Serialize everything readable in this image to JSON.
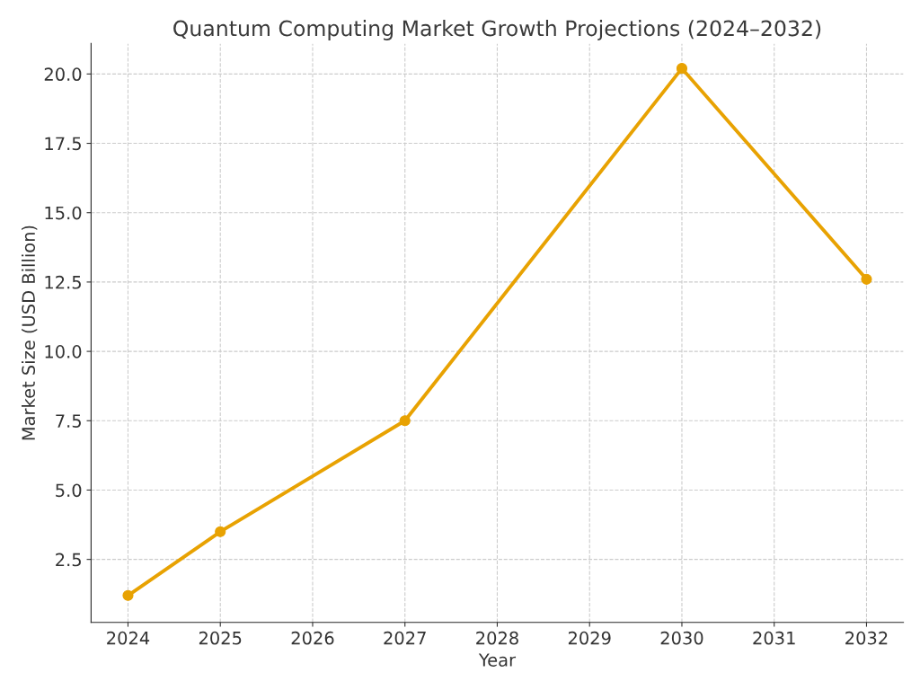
{
  "chart_data": {
    "type": "line",
    "title": "Quantum Computing Market Growth Projections (2024–2032)",
    "xlabel": "Year",
    "ylabel": "Market Size (USD Billion)",
    "x": [
      2024,
      2025,
      2027,
      2030,
      2032
    ],
    "series": [
      {
        "color": "#e8a202",
        "values": [
          1.2,
          3.5,
          7.5,
          20.2,
          12.6
        ]
      }
    ],
    "xlim": [
      2023.6,
      2032.4
    ],
    "xticks": [
      2024,
      2025,
      2026,
      2027,
      2028,
      2029,
      2030,
      2031,
      2032
    ],
    "ylim": [
      0.23,
      21.1
    ],
    "yticks": [
      {
        "value": 2.5,
        "label": "2.5"
      },
      {
        "value": 5,
        "label": "5.0"
      },
      {
        "value": 7.5,
        "label": "7.5"
      },
      {
        "value": 10,
        "label": "10.0"
      },
      {
        "value": 12.5,
        "label": "12.5"
      },
      {
        "value": 15,
        "label": "15.0"
      },
      {
        "value": 17.5,
        "label": "17.5"
      },
      {
        "value": 20,
        "label": "20.0"
      }
    ],
    "grid": true,
    "marker": "circle",
    "line_style": "solid"
  }
}
